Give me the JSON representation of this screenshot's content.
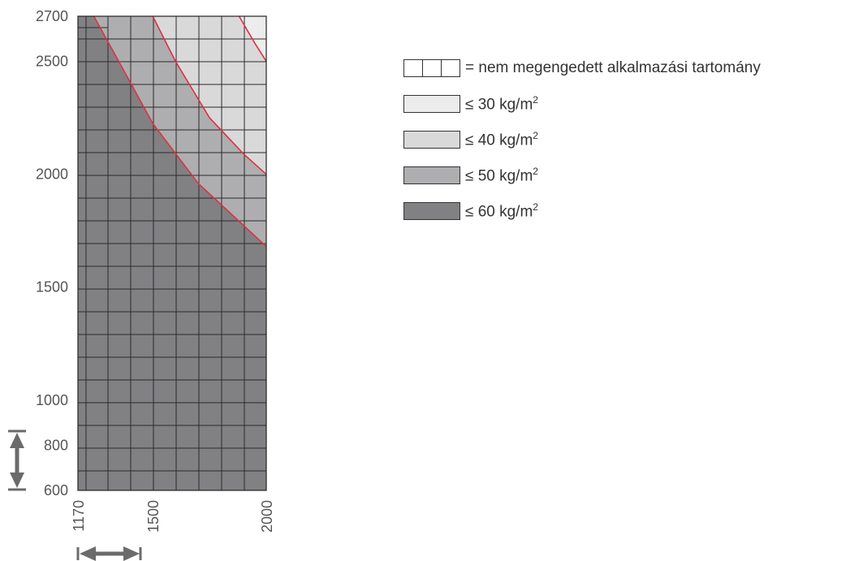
{
  "chart_data": {
    "type": "heatmap",
    "x_ticks": [
      "1170",
      "1500",
      "2000"
    ],
    "y_ticks": [
      "600",
      "800",
      "1000",
      "1500",
      "2000",
      "2500",
      "2700"
    ],
    "xlim": [
      1170,
      2000
    ],
    "ylim": [
      600,
      2700
    ],
    "grid": true,
    "legend_position": "right",
    "regions": [
      {
        "label": "≤ 30 kg/m",
        "unit_exp": "2",
        "color": "#ececec"
      },
      {
        "label": "≤ 40 kg/m",
        "unit_exp": "2",
        "color": "#d9d9da"
      },
      {
        "label": "≤ 50 kg/m",
        "unit_exp": "2",
        "color": "#aeaeb0"
      },
      {
        "label": "≤ 60 kg/m",
        "unit_exp": "2",
        "color": "#818184"
      }
    ],
    "forbidden_region_label": "= nem megengedett alkalmazási tartomány",
    "boundary_curves": [
      {
        "between": "≤ 60 / ≤ 50",
        "points": [
          [
            1240,
            2700
          ],
          [
            1350,
            2500
          ],
          [
            1500,
            2225
          ],
          [
            1700,
            1960
          ],
          [
            2000,
            1680
          ]
        ]
      },
      {
        "between": "≤ 50 / ≤ 40",
        "points": [
          [
            1500,
            2700
          ],
          [
            1600,
            2500
          ],
          [
            1750,
            2250
          ],
          [
            1900,
            2090
          ],
          [
            2000,
            2000
          ]
        ]
      },
      {
        "between": "≤ 40 / ≤ 30",
        "points": [
          [
            1880,
            2700
          ],
          [
            1950,
            2580
          ],
          [
            2000,
            2500
          ]
        ]
      }
    ],
    "boundary_color": "#e03040"
  }
}
